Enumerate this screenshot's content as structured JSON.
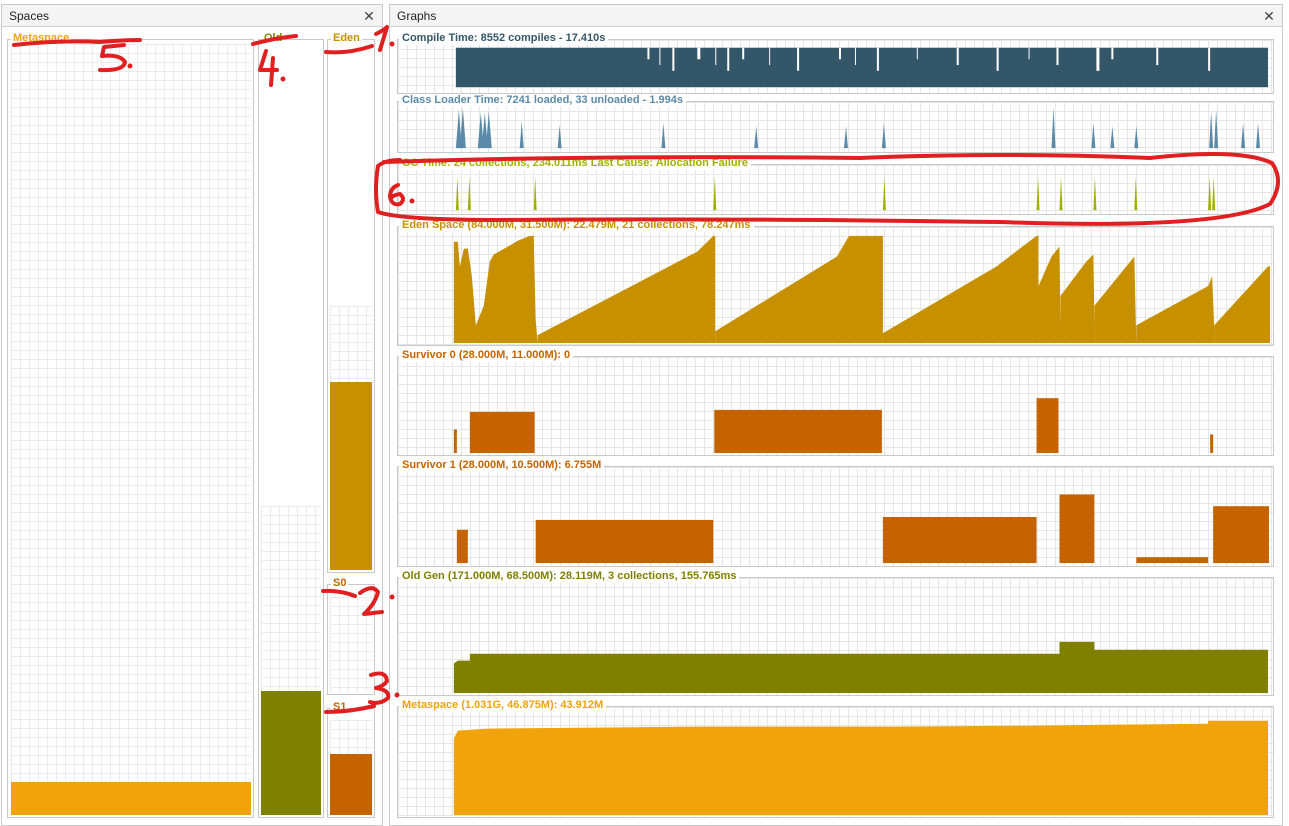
{
  "spaces_panel": {
    "title": "Spaces",
    "close": "✕"
  },
  "graphs_panel": {
    "title": "Graphs",
    "close": "✕"
  },
  "spaces": [
    {
      "key": "metaspace",
      "label": "Metaspace",
      "color": "#f0a30a",
      "used_fraction": 0.043
    },
    {
      "key": "old",
      "label": "Old",
      "color": "#808000",
      "used_fraction": 0.4
    },
    {
      "key": "eden",
      "label": "Eden",
      "color": "#c69000",
      "used_fraction": 0.714
    },
    {
      "key": "s0",
      "label": "S0",
      "color": "#c56300",
      "used_fraction": 0.0
    },
    {
      "key": "s1",
      "label": "S1",
      "color": "#c56300",
      "used_fraction": 0.643
    }
  ],
  "graphs": [
    {
      "key": "compile",
      "label": "Compile Time: 8552 compiles - 17.410s",
      "color": "#345669"
    },
    {
      "key": "classloader",
      "label": "Class Loader Time: 7241 loaded, 33 unloaded - 1.994s",
      "color": "#5a8aa8"
    },
    {
      "key": "gc",
      "label": "GC Time: 24 collections, 234.011ms Last Cause: Allocation Failure",
      "color": "#a0b000"
    },
    {
      "key": "eden",
      "label": "Eden Space (84.000M, 31.500M): 22.479M, 21 collections, 78.247ms",
      "color": "#c69000"
    },
    {
      "key": "s0",
      "label": "Survivor 0 (28.000M, 11.000M): 0",
      "color": "#c56300"
    },
    {
      "key": "s1",
      "label": "Survivor 1 (28.000M, 10.500M): 6.755M",
      "color": "#c56300"
    },
    {
      "key": "oldgen",
      "label": "Old Gen (171.000M, 68.500M): 28.119M, 3 collections, 155.765ms",
      "color": "#808000"
    },
    {
      "key": "metaspace",
      "label": "Metaspace (1.031G, 46.875M): 43.912M",
      "color": "#f0a30a"
    }
  ],
  "annotations": {
    "color": "#e02020",
    "numbers": [
      "1.",
      "2.",
      "3.",
      "4.",
      "5.",
      "6."
    ]
  }
}
